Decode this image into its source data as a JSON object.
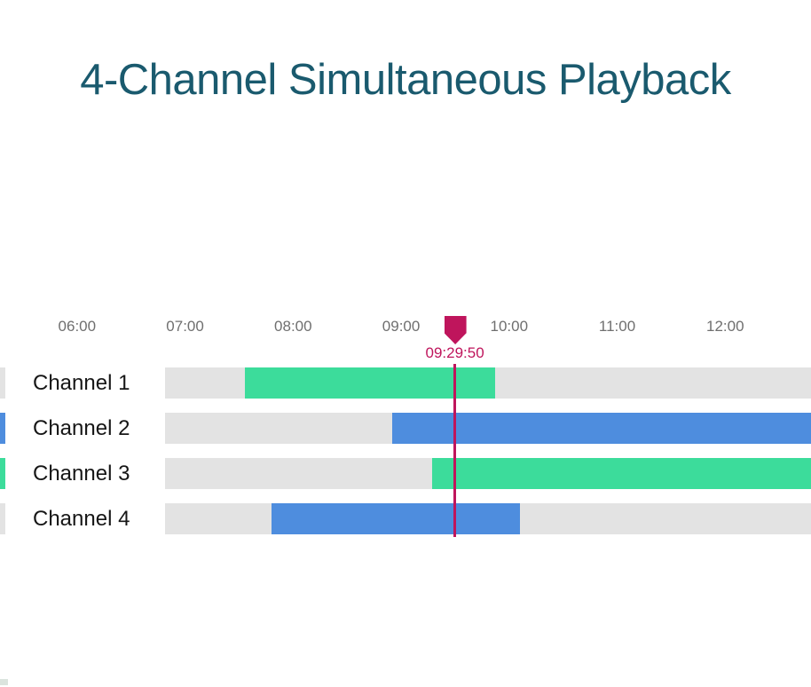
{
  "title": {
    "text": "4-Channel Simultaneous Playback",
    "color": "#1a5a6e"
  },
  "chart_data": {
    "type": "bar",
    "variant": "horizontal-timeline-gantt",
    "title": "4-Channel Simultaneous Playback",
    "categories": [
      "Channel 1",
      "Channel 2",
      "Channel 3",
      "Channel 4"
    ],
    "x_ticks": [
      "06:00",
      "07:00",
      "08:00",
      "09:00",
      "10:00",
      "11:00",
      "12:00"
    ],
    "x_scale": {
      "t0": "06:00",
      "t0_pct": 9.5,
      "pct_per_hour": 13.32
    },
    "bars": [
      {
        "category": "Channel 1",
        "start": "07:33",
        "end": "09:52",
        "color_key": "green",
        "end_clipped": false,
        "left_edge_strip": "track"
      },
      {
        "category": "Channel 2",
        "start": "08:55",
        "end": "12:48",
        "color_key": "blue",
        "end_clipped": true,
        "left_edge_strip": "bar"
      },
      {
        "category": "Channel 3",
        "start": "09:17",
        "end": "12:48",
        "color_key": "green",
        "end_clipped": true,
        "left_edge_strip": "bar"
      },
      {
        "category": "Channel 4",
        "start": "07:48",
        "end": "10:06",
        "color_key": "blue",
        "end_clipped": false,
        "left_edge_strip": "track"
      }
    ],
    "playhead": {
      "time": "09:29:50"
    },
    "colors": {
      "green": "#3cdc9b",
      "blue": "#4e8dde",
      "playhead": "#bf155c",
      "track": "#e3e3e3",
      "axis_text": "#6f6f6f",
      "label_text": "#161616"
    },
    "legend": false,
    "grid": false
  }
}
